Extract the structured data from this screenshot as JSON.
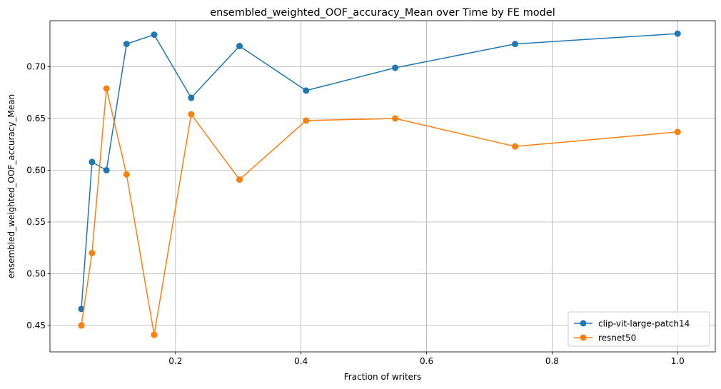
{
  "chart_data": {
    "type": "line",
    "title": "ensembled_weighted_OOF_accuracy_Mean over Time by FE model",
    "xlabel": "Fraction of writers",
    "ylabel": "ensembled_weighted_OOF_accuracy_Mean",
    "xlim": [
      0.0,
      1.06
    ],
    "ylim": [
      0.4245,
      0.7445
    ],
    "xticks": [
      0.2,
      0.4,
      0.6,
      0.8,
      1.0
    ],
    "xtick_labels": [
      "0.2",
      "0.4",
      "0.6",
      "0.8",
      "1.0"
    ],
    "yticks": [
      0.45,
      0.5,
      0.55,
      0.6,
      0.65,
      0.7
    ],
    "ytick_labels": [
      "0.45",
      "0.50",
      "0.55",
      "0.60",
      "0.65",
      "0.70"
    ],
    "grid": true,
    "legend_position": "lower-right",
    "x": [
      0.05,
      0.067,
      0.09,
      0.122,
      0.166,
      0.225,
      0.302,
      0.408,
      0.55,
      0.741,
      1.0
    ],
    "series": [
      {
        "name": "clip-vit-large-patch14",
        "color": "#1f77b4",
        "values": [
          0.466,
          0.608,
          0.6,
          0.722,
          0.731,
          0.67,
          0.72,
          0.677,
          0.699,
          0.722,
          0.732
        ]
      },
      {
        "name": "resnet50",
        "color": "#ff7f0e",
        "values": [
          0.45,
          0.52,
          0.679,
          0.596,
          0.441,
          0.654,
          0.591,
          0.648,
          0.65,
          0.623,
          0.637
        ]
      }
    ]
  }
}
